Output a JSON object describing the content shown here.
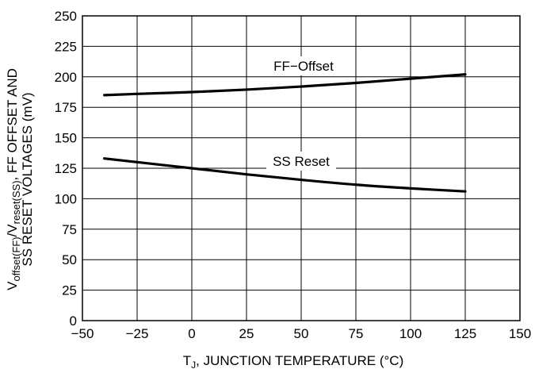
{
  "chart_data": {
    "type": "line",
    "xlabel": {
      "prefix": "T",
      "sub": "J",
      "rest": ", JUNCTION TEMPERATURE (°C)"
    },
    "ylabel": {
      "line1": [
        {
          "text": "V",
          "sub": false
        },
        {
          "text": "offset(FF)",
          "sub": true
        },
        {
          "text": "/V",
          "sub": false
        },
        {
          "text": "reset(SS)",
          "sub": true
        },
        {
          "text": ", FF OFFSET AND",
          "sub": false
        }
      ],
      "line2": "SS RESET VOLTAGES (mV)"
    },
    "xlim": [
      -50,
      150
    ],
    "ylim": [
      0,
      250
    ],
    "xticks": [
      -50,
      -25,
      0,
      25,
      50,
      75,
      100,
      125,
      150
    ],
    "xtick_labels": [
      "−50",
      "−25",
      "0",
      "25",
      "50",
      "75",
      "100",
      "125",
      "150"
    ],
    "yticks": [
      0,
      25,
      50,
      75,
      100,
      125,
      150,
      175,
      200,
      225,
      250
    ],
    "ytick_labels": [
      "0",
      "25",
      "50",
      "75",
      "100",
      "125",
      "150",
      "175",
      "200",
      "225",
      "250"
    ],
    "grid": true,
    "series": [
      {
        "name": "FF−Offset",
        "x": [
          -40,
          -25,
          0,
          25,
          50,
          75,
          100,
          125
        ],
        "y": [
          185,
          186,
          187.5,
          189.5,
          192,
          195,
          198.5,
          202
        ]
      },
      {
        "name": "SS Reset",
        "x": [
          -40,
          -25,
          0,
          25,
          50,
          75,
          100,
          125
        ],
        "y": [
          133,
          130,
          125,
          120,
          115.5,
          111.5,
          108.5,
          106
        ]
      }
    ]
  }
}
